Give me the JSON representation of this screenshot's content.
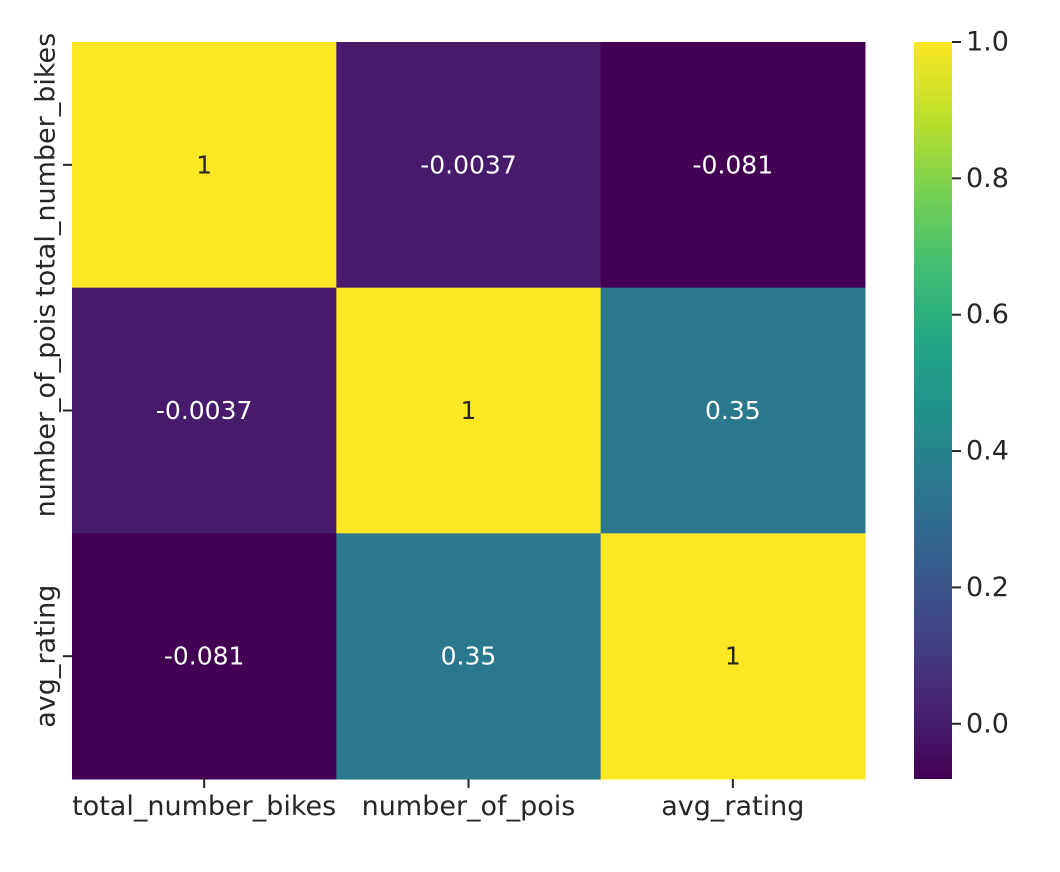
{
  "chart_data": {
    "type": "heatmap",
    "x_categories": [
      "total_number_bikes",
      "number_of_pois",
      "avg_rating"
    ],
    "y_categories": [
      "total_number_bikes",
      "number_of_pois",
      "avg_rating"
    ],
    "values": [
      [
        1,
        -0.0037,
        -0.081
      ],
      [
        -0.0037,
        1,
        0.35
      ],
      [
        -0.081,
        0.35,
        1
      ]
    ],
    "annotations": [
      [
        "1",
        "-0.0037",
        "-0.081"
      ],
      [
        "-0.0037",
        "1",
        "0.35"
      ],
      [
        "-0.081",
        "0.35",
        "1"
      ]
    ],
    "colormap": "viridis",
    "vmin": -0.081,
    "vmax": 1.0,
    "colorbar": {
      "ticks": [
        0.0,
        0.2,
        0.4,
        0.6,
        0.8,
        1.0
      ],
      "tick_labels": [
        "0.0",
        "0.2",
        "0.4",
        "0.6",
        "0.8",
        "1.0"
      ]
    },
    "title": "",
    "xlabel": "",
    "ylabel": ""
  }
}
